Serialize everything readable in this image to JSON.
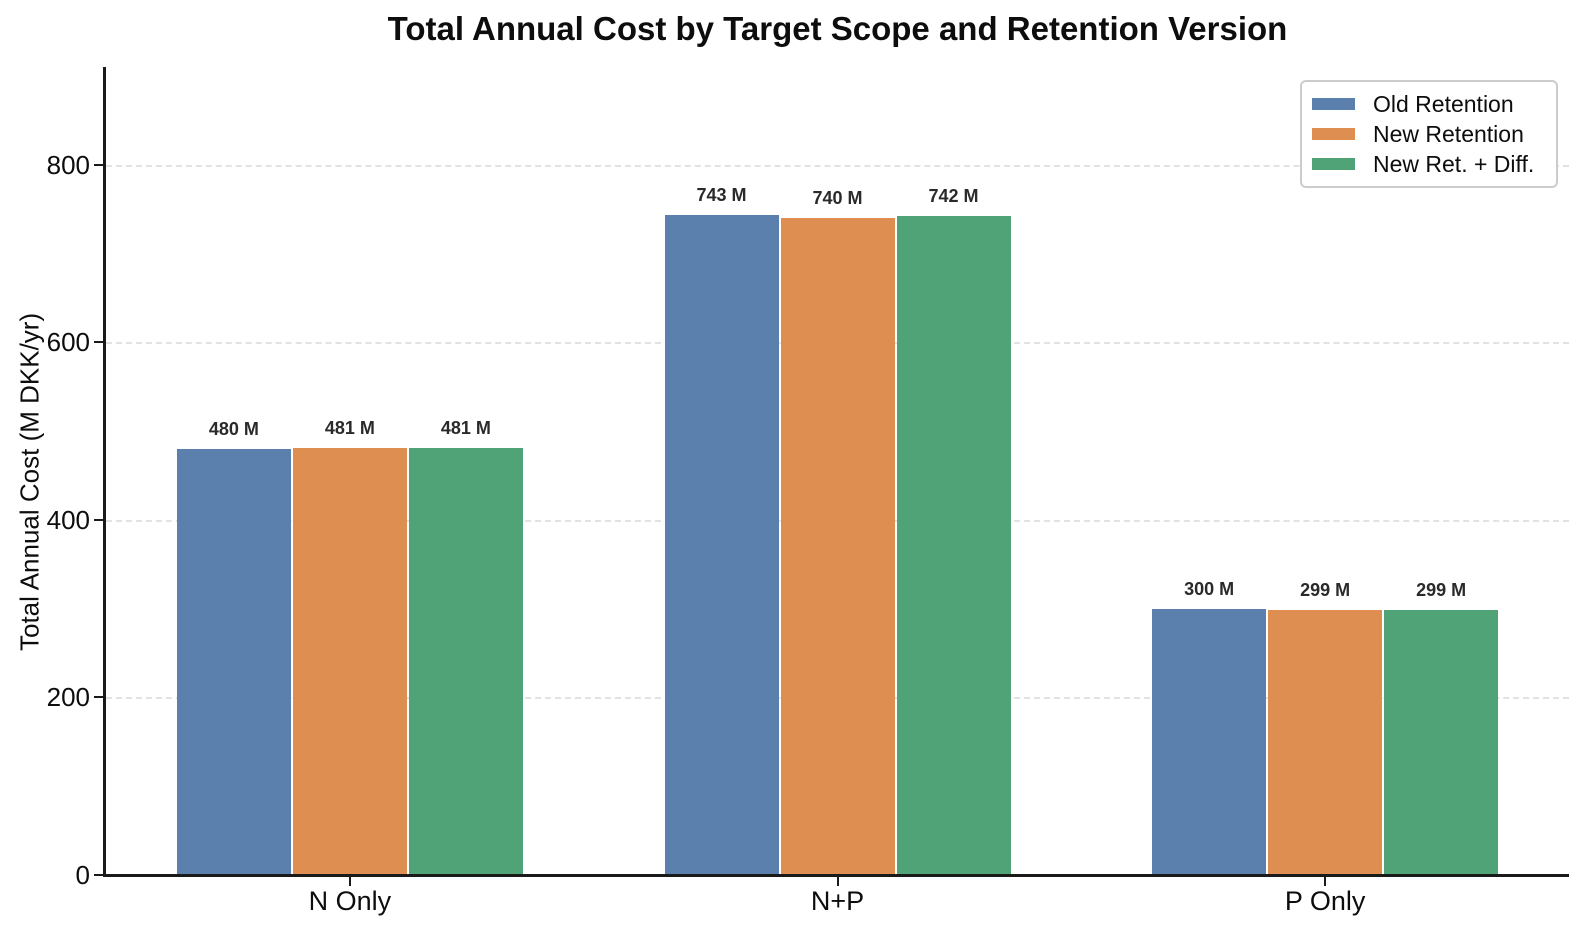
{
  "chart_data": {
    "type": "bar",
    "title": "Total Annual Cost by Target Scope and Retention Version",
    "xlabel": "",
    "ylabel": "Total Annual Cost (M DKK/yr)",
    "categories": [
      "N Only",
      "N+P",
      "P Only"
    ],
    "series": [
      {
        "name": "Old Retention",
        "color": "#5b80ad",
        "values": [
          480,
          743,
          300
        ],
        "bar_labels": [
          "480 M",
          "743 M",
          "300 M"
        ]
      },
      {
        "name": "New Retention",
        "color": "#de8e51",
        "values": [
          481,
          740,
          299
        ],
        "bar_labels": [
          "481 M",
          "740 M",
          "299 M"
        ]
      },
      {
        "name": "New Ret. + Diff.",
        "color": "#4fa377",
        "values": [
          481,
          742,
          299
        ],
        "bar_labels": [
          "481 M",
          "742 M",
          "299 M"
        ]
      }
    ],
    "yticks": [
      0,
      200,
      400,
      600,
      800
    ],
    "ylim": [
      0,
      910
    ],
    "grid": {
      "axis": "y",
      "style": "dashed",
      "color": "#e2e2e2"
    },
    "legend": {
      "position": "upper-right"
    },
    "axis_color": "#1a1a1a",
    "background_color": "#ffffff"
  }
}
